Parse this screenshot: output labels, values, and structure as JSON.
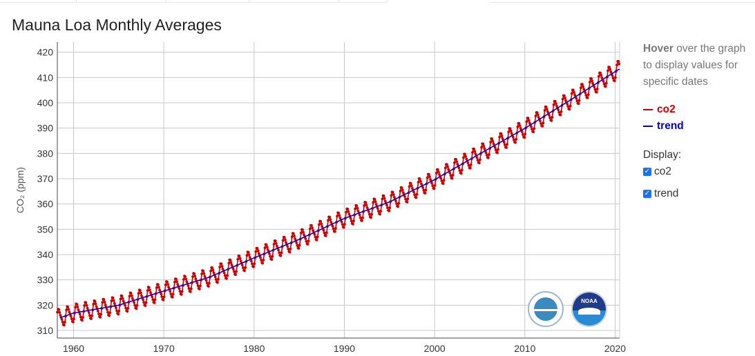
{
  "title": "Mauna Loa Monthly Averages",
  "side": {
    "hover_bold": "Hover",
    "hover_rest": " over the graph to display values for specific dates",
    "display_label": "Display:",
    "options": [
      {
        "label": "co2",
        "checked": true
      },
      {
        "label": "trend",
        "checked": true
      }
    ]
  },
  "colors": {
    "co2": "#cc0000",
    "trend": "#0000cc",
    "grid": "#c8c8c8",
    "axis": "#444444"
  },
  "logos": {
    "left": "scripps-institution-logo",
    "right": "noaa-logo",
    "right_text": "NOAA"
  },
  "chart_data": {
    "type": "line",
    "title": "",
    "xlabel": "",
    "ylabel": "CO₂ (ppm)",
    "xlim": [
      1958.2,
      2020.5
    ],
    "ylim": [
      307,
      424
    ],
    "x_ticks": [
      1960,
      1970,
      1980,
      1990,
      2000,
      2010,
      2020
    ],
    "y_ticks": [
      310,
      320,
      330,
      340,
      350,
      360,
      370,
      380,
      390,
      400,
      410,
      420
    ],
    "grid": true,
    "legend": "right",
    "series": [
      {
        "name": "co2",
        "type": "seasonal",
        "seasonal_amplitude": 3.2,
        "trend_ref": "trend"
      },
      {
        "name": "trend",
        "x": [
          1958.5,
          1960,
          1965,
          1970,
          1975,
          1980,
          1985,
          1990,
          1995,
          2000,
          2005,
          2010,
          2015,
          2020.4
        ],
        "y": [
          315.0,
          316.9,
          320.0,
          325.6,
          331.0,
          338.7,
          346.0,
          354.3,
          360.8,
          369.6,
          379.8,
          389.9,
          401.0,
          413.2
        ]
      }
    ]
  }
}
